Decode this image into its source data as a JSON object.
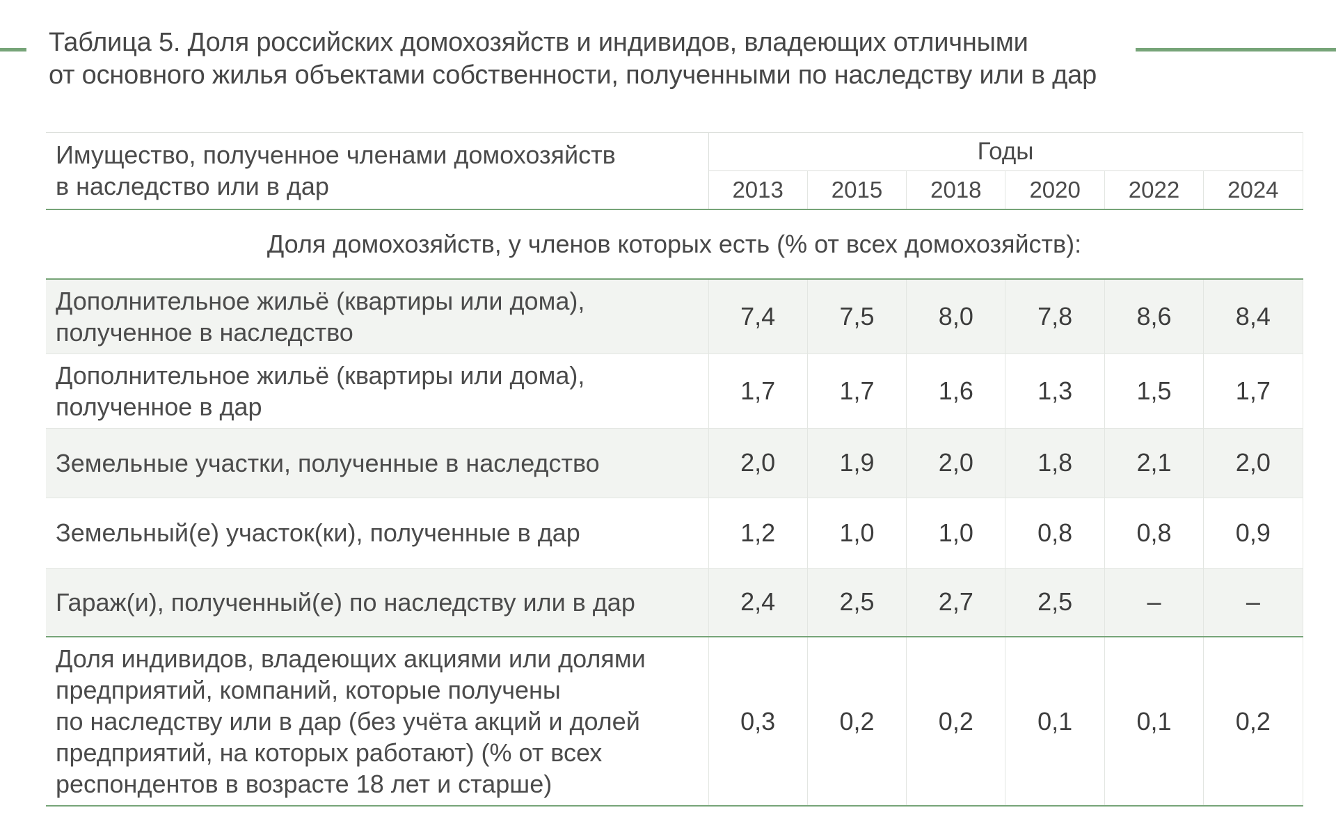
{
  "colors": {
    "green": "#76a478",
    "text": "#4b4b4b",
    "row-shade": "#f2f4f1"
  },
  "title": "Таблица 5. Доля российских домохозяйств и индивидов, владеющих отличными\nот основного жилья объектами собственности, полученными по наследству или в дар",
  "table": {
    "header": {
      "stub": "Имущество, полученное членами домохозяйств\nв наследство или в дар",
      "group": "Годы",
      "years": [
        "2013",
        "2015",
        "2018",
        "2020",
        "2022",
        "2024"
      ]
    },
    "section_title": "Доля домохозяйств, у членов которых есть (% от всех домохозяйств):",
    "rows": [
      {
        "label": "Дополнительное жильё (квартиры или дома),\nполученное в наследство",
        "values": [
          "7,4",
          "7,5",
          "8,0",
          "7,8",
          "8,6",
          "8,4"
        ]
      },
      {
        "label": "Дополнительное жильё (квартиры или дома),\nполученное в дар",
        "values": [
          "1,7",
          "1,7",
          "1,6",
          "1,3",
          "1,5",
          "1,7"
        ]
      },
      {
        "label": "Земельные участки, полученные в наследство",
        "values": [
          "2,0",
          "1,9",
          "2,0",
          "1,8",
          "2,1",
          "2,0"
        ]
      },
      {
        "label": "Земельный(е) участок(ки), полученные в дар",
        "values": [
          "1,2",
          "1,0",
          "1,0",
          "0,8",
          "0,8",
          "0,9"
        ]
      },
      {
        "label": "Гараж(и), полученный(е) по наследству или в дар",
        "values": [
          "2,4",
          "2,5",
          "2,7",
          "2,5",
          "–",
          "–"
        ]
      },
      {
        "label": "Доля индивидов, владеющих акциями или долями\nпредприятий, компаний, которые получены\nпо наследству или в дар (без учёта акций и долей\nпредприятий, на которых работают) (% от всех\nреспондентов в возрасте 18 лет и старше)",
        "values": [
          "0,3",
          "0,2",
          "0,2",
          "0,1",
          "0,1",
          "0,2"
        ]
      }
    ]
  }
}
